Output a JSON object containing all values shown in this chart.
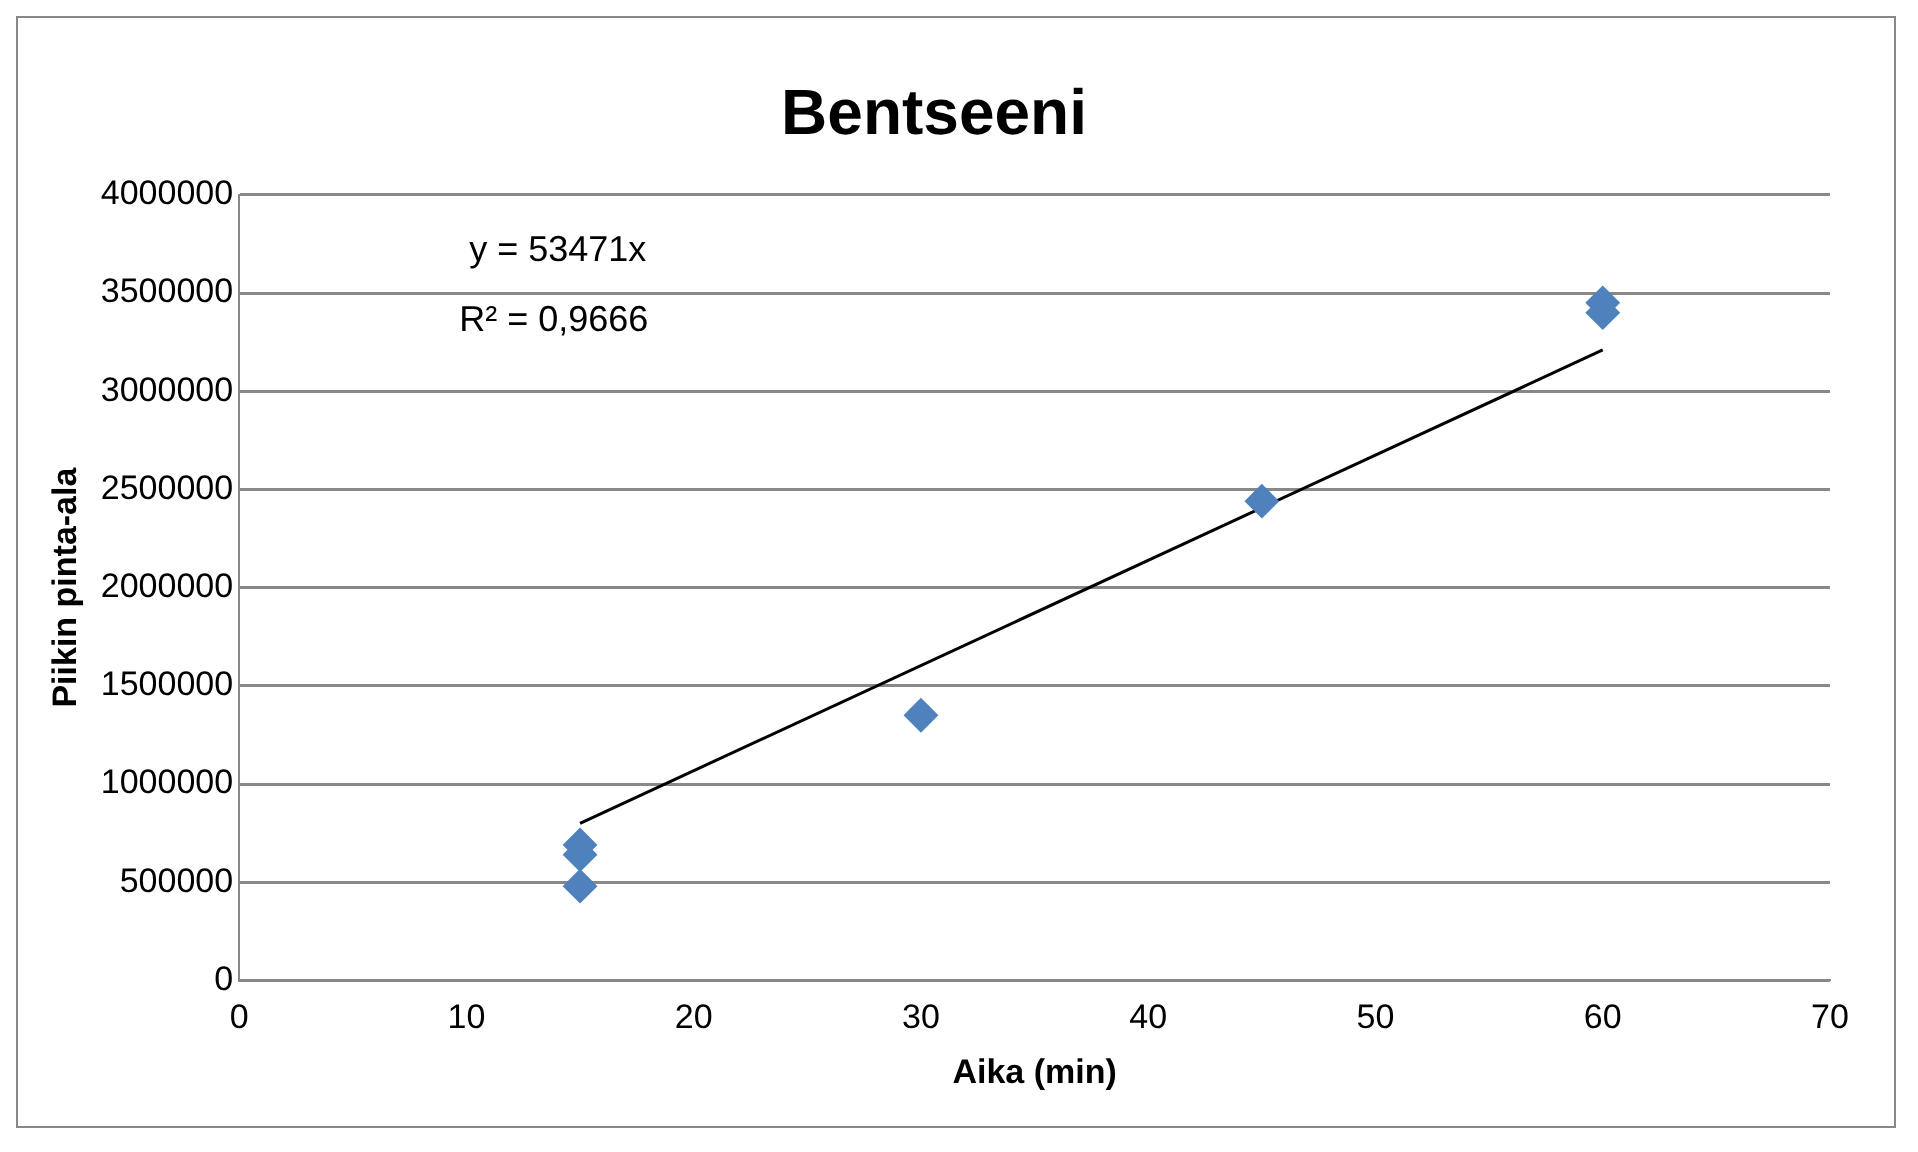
{
  "chart_data": {
    "type": "scatter",
    "title": "Bentseeni",
    "xlabel": "Aika (min)",
    "ylabel": "Piikin pinta-ala",
    "series": [
      {
        "type": "scatter",
        "color": "#4f81bd",
        "x": [
          15,
          15,
          15,
          30,
          45,
          60,
          60
        ],
        "values": [
          480000,
          640000,
          690000,
          1350000,
          2440000,
          3400000,
          3450000
        ]
      },
      {
        "type": "line",
        "color": "#000000",
        "x": [
          15,
          60
        ],
        "values": [
          800000,
          3210000
        ],
        "marker": "none"
      }
    ],
    "xlim": [
      0,
      70
    ],
    "xticks": [
      0,
      10,
      20,
      30,
      40,
      50,
      60,
      70
    ],
    "ylim": [
      0,
      4000000
    ],
    "yticks": [
      0,
      500000,
      1000000,
      1500000,
      2000000,
      2500000,
      3000000,
      3500000,
      4000000
    ],
    "grid": "y",
    "legend": false,
    "marker": "diamond",
    "annotations": [
      "y = 53471x",
      "R² = 0,9666"
    ]
  }
}
